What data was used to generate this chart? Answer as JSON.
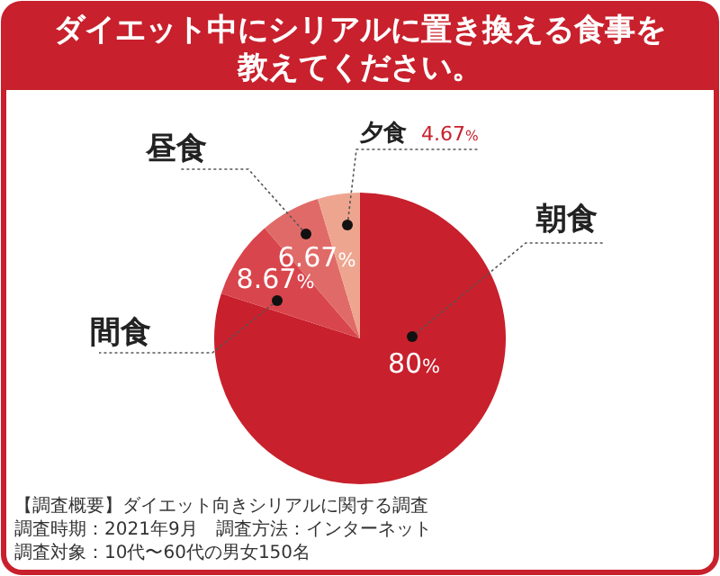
{
  "chart_data": {
    "type": "pie",
    "title": "ダイエット中にシリアルに置き換える食事を教えてください。",
    "categories": [
      "朝食",
      "間食",
      "昼食",
      "夕食"
    ],
    "values": [
      80,
      8.67,
      6.67,
      4.67
    ],
    "colors": [
      "#c8202c",
      "#d9454c",
      "#e06a68",
      "#eea58f"
    ],
    "value_labels": [
      "80%",
      "8.67%",
      "6.67%",
      "4.67%"
    ],
    "annotations": [
      "【調査概要】ダイエット向きシリアルに関する調査",
      "調査時期：2021年9月　調査方法：インターネット",
      "調査対象：10代〜60代の男女150名"
    ]
  }
}
